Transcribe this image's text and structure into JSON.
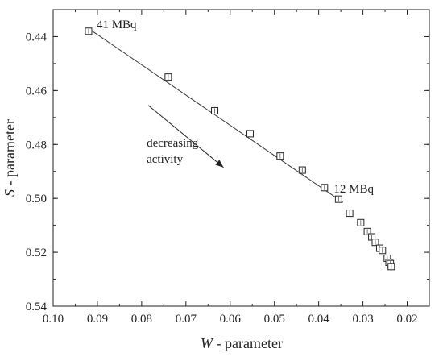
{
  "chart_data": {
    "type": "scatter",
    "xlabel_var": "W",
    "xlabel_rest": " - parameter",
    "ylabel_var": "S",
    "ylabel_rest": " - parameter",
    "xlim": [
      0.1,
      0.015
    ],
    "ylim": [
      0.43,
      0.54
    ],
    "x_reversed": true,
    "y_reversed": true,
    "grid": false,
    "x_ticks": [
      0.1,
      0.09,
      0.08,
      0.07,
      0.06,
      0.05,
      0.04,
      0.03,
      0.02
    ],
    "x_tick_labels": [
      "0.10",
      "0.09",
      "0.08",
      "0.07",
      "0.06",
      "0.05",
      "0.04",
      "0.03",
      "0.02"
    ],
    "y_ticks": [
      0.44,
      0.46,
      0.48,
      0.5,
      0.52,
      0.54
    ],
    "y_tick_labels": [
      "0.44",
      "0.46",
      "0.48",
      "0.50",
      "0.52",
      "0.54"
    ],
    "points": [
      {
        "x": 0.092,
        "y": 0.438
      },
      {
        "x": 0.074,
        "y": 0.455
      },
      {
        "x": 0.0635,
        "y": 0.4675
      },
      {
        "x": 0.0555,
        "y": 0.476
      },
      {
        "x": 0.0487,
        "y": 0.4843
      },
      {
        "x": 0.0437,
        "y": 0.4895
      },
      {
        "x": 0.0387,
        "y": 0.496
      },
      {
        "x": 0.0355,
        "y": 0.5003
      },
      {
        "x": 0.033,
        "y": 0.5055
      },
      {
        "x": 0.0305,
        "y": 0.509
      },
      {
        "x": 0.029,
        "y": 0.5123
      },
      {
        "x": 0.028,
        "y": 0.5143
      },
      {
        "x": 0.0272,
        "y": 0.5163
      },
      {
        "x": 0.0262,
        "y": 0.5185
      },
      {
        "x": 0.0256,
        "y": 0.5193
      },
      {
        "x": 0.0245,
        "y": 0.5222
      },
      {
        "x": 0.0241,
        "y": 0.5237
      },
      {
        "x": 0.0238,
        "y": 0.5242
      },
      {
        "x": 0.0236,
        "y": 0.5253
      }
    ],
    "fit_line": [
      {
        "x": 0.092,
        "y": 0.437
      },
      {
        "x": 0.0345,
        "y": 0.5015
      }
    ],
    "annotations": {
      "start_label": "41 MBq",
      "end_label": "12 MBq",
      "arrow_label_line1": "decreasing",
      "arrow_label_line2": "activity"
    },
    "arrow": {
      "from": {
        "x": 0.0785,
        "y": 0.4655
      },
      "to": {
        "x": 0.0615,
        "y": 0.4885
      }
    }
  }
}
